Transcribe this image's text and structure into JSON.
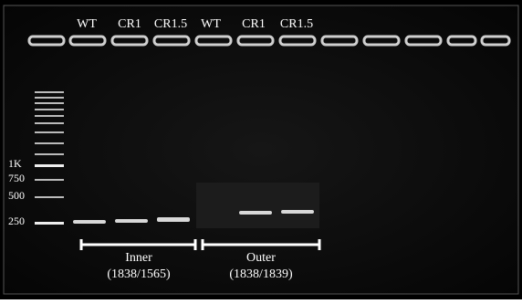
{
  "lanes": [
    "WT",
    "CR1",
    "CR1.5",
    "WT",
    "CR1",
    "CR1.5"
  ],
  "ladder": [
    "1K",
    "750",
    "500",
    "250"
  ],
  "groups": [
    {
      "name": "Inner",
      "primers": "(1838/1565)"
    },
    {
      "name": "Outer",
      "primers": "(1838/1839)"
    }
  ]
}
